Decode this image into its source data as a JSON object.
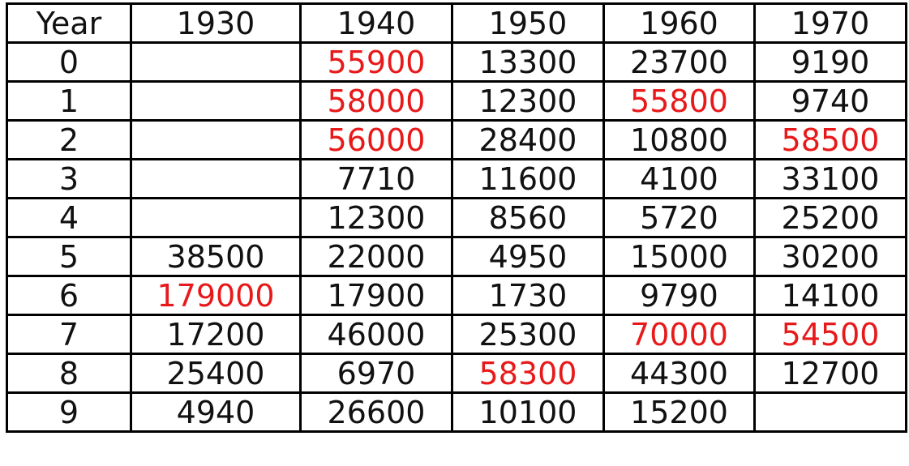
{
  "table": {
    "header": [
      "Year",
      "1930",
      "1940",
      "1950",
      "1960",
      "1970"
    ],
    "rows": [
      [
        "0",
        "",
        "55900",
        "13300",
        "23700",
        "9190"
      ],
      [
        "1",
        "",
        "58000",
        "12300",
        "55800",
        "9740"
      ],
      [
        "2",
        "",
        "56000",
        "28400",
        "10800",
        "58500"
      ],
      [
        "3",
        "",
        "7710",
        "11600",
        "4100",
        "33100"
      ],
      [
        "4",
        "",
        "12300",
        "8560",
        "5720",
        "25200"
      ],
      [
        "5",
        "38500",
        "22000",
        "4950",
        "15000",
        "30200"
      ],
      [
        "6",
        "179000",
        "17900",
        "1730",
        "9790",
        "14100"
      ],
      [
        "7",
        "17200",
        "46000",
        "25300",
        "70000",
        "54500"
      ],
      [
        "8",
        "25400",
        "6970",
        "58300",
        "44300",
        "12700"
      ],
      [
        "9",
        "4940",
        "26600",
        "10100",
        "15200",
        ""
      ]
    ],
    "highlighted": [
      [
        0,
        2
      ],
      [
        1,
        2
      ],
      [
        2,
        2
      ],
      [
        1,
        4
      ],
      [
        2,
        5
      ],
      [
        6,
        1
      ],
      [
        7,
        4
      ],
      [
        7,
        5
      ],
      [
        8,
        3
      ]
    ],
    "highlight_color": "#e8191a",
    "text_color": "#111111",
    "border_color": "#000000"
  }
}
